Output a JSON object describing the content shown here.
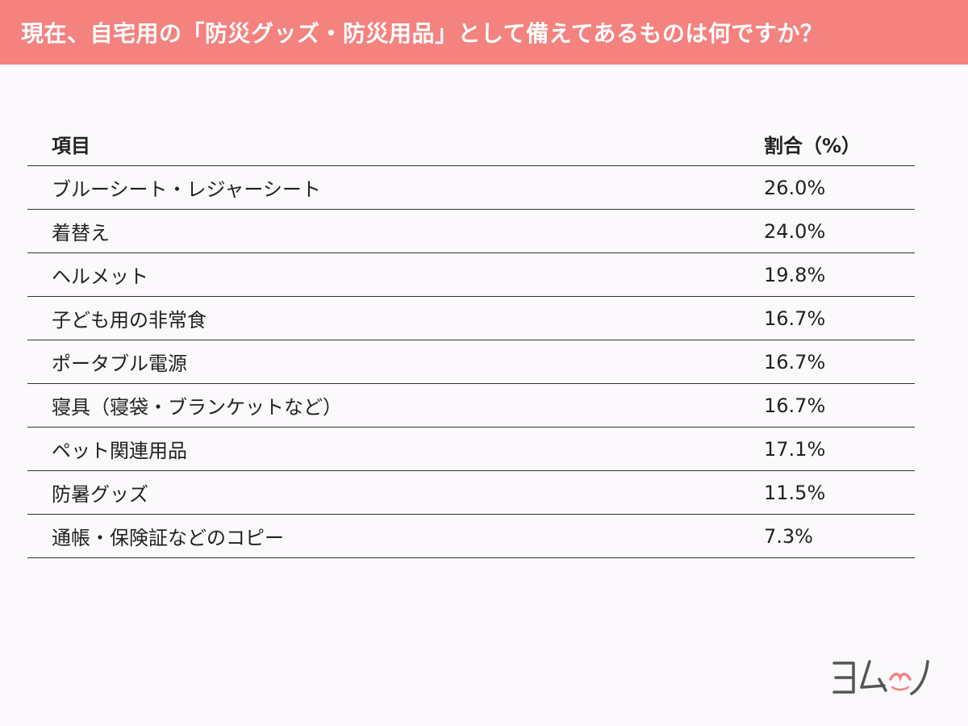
{
  "header": {
    "title": "現在、自宅用の「防災グッズ・防災用品」として備えてあるものは何ですか？"
  },
  "chart_data": {
    "type": "table",
    "columns": [
      "項目",
      "割合（%）"
    ],
    "rows": [
      {
        "item": "ブルーシート・レジャーシート",
        "value": "26.0%",
        "percent": 26.0
      },
      {
        "item": "着替え",
        "value": "24.0%",
        "percent": 24.0
      },
      {
        "item": "ヘルメット",
        "value": "19.8%",
        "percent": 19.8
      },
      {
        "item": "子ども用の非常食",
        "value": "16.7%",
        "percent": 16.7
      },
      {
        "item": "ポータブル電源",
        "value": "16.7%",
        "percent": 16.7
      },
      {
        "item": "寝具（寝袋・ブランケットなど）",
        "value": "16.7%",
        "percent": 16.7
      },
      {
        "item": "ペット関連用品",
        "value": "17.1%",
        "percent": 17.1
      },
      {
        "item": "防暑グッズ",
        "value": "11.5%",
        "percent": 11.5
      },
      {
        "item": "通帳・保険証などのコピー",
        "value": "7.3%",
        "percent": 7.3
      }
    ]
  },
  "logo": {
    "text": "ヨムーノ",
    "icon": "yomuno-logo-icon",
    "accent_color": "#f4827f"
  },
  "colors": {
    "header_background": "#f4827f",
    "page_background": "#fbf9fb",
    "rule_color": "#333333"
  }
}
